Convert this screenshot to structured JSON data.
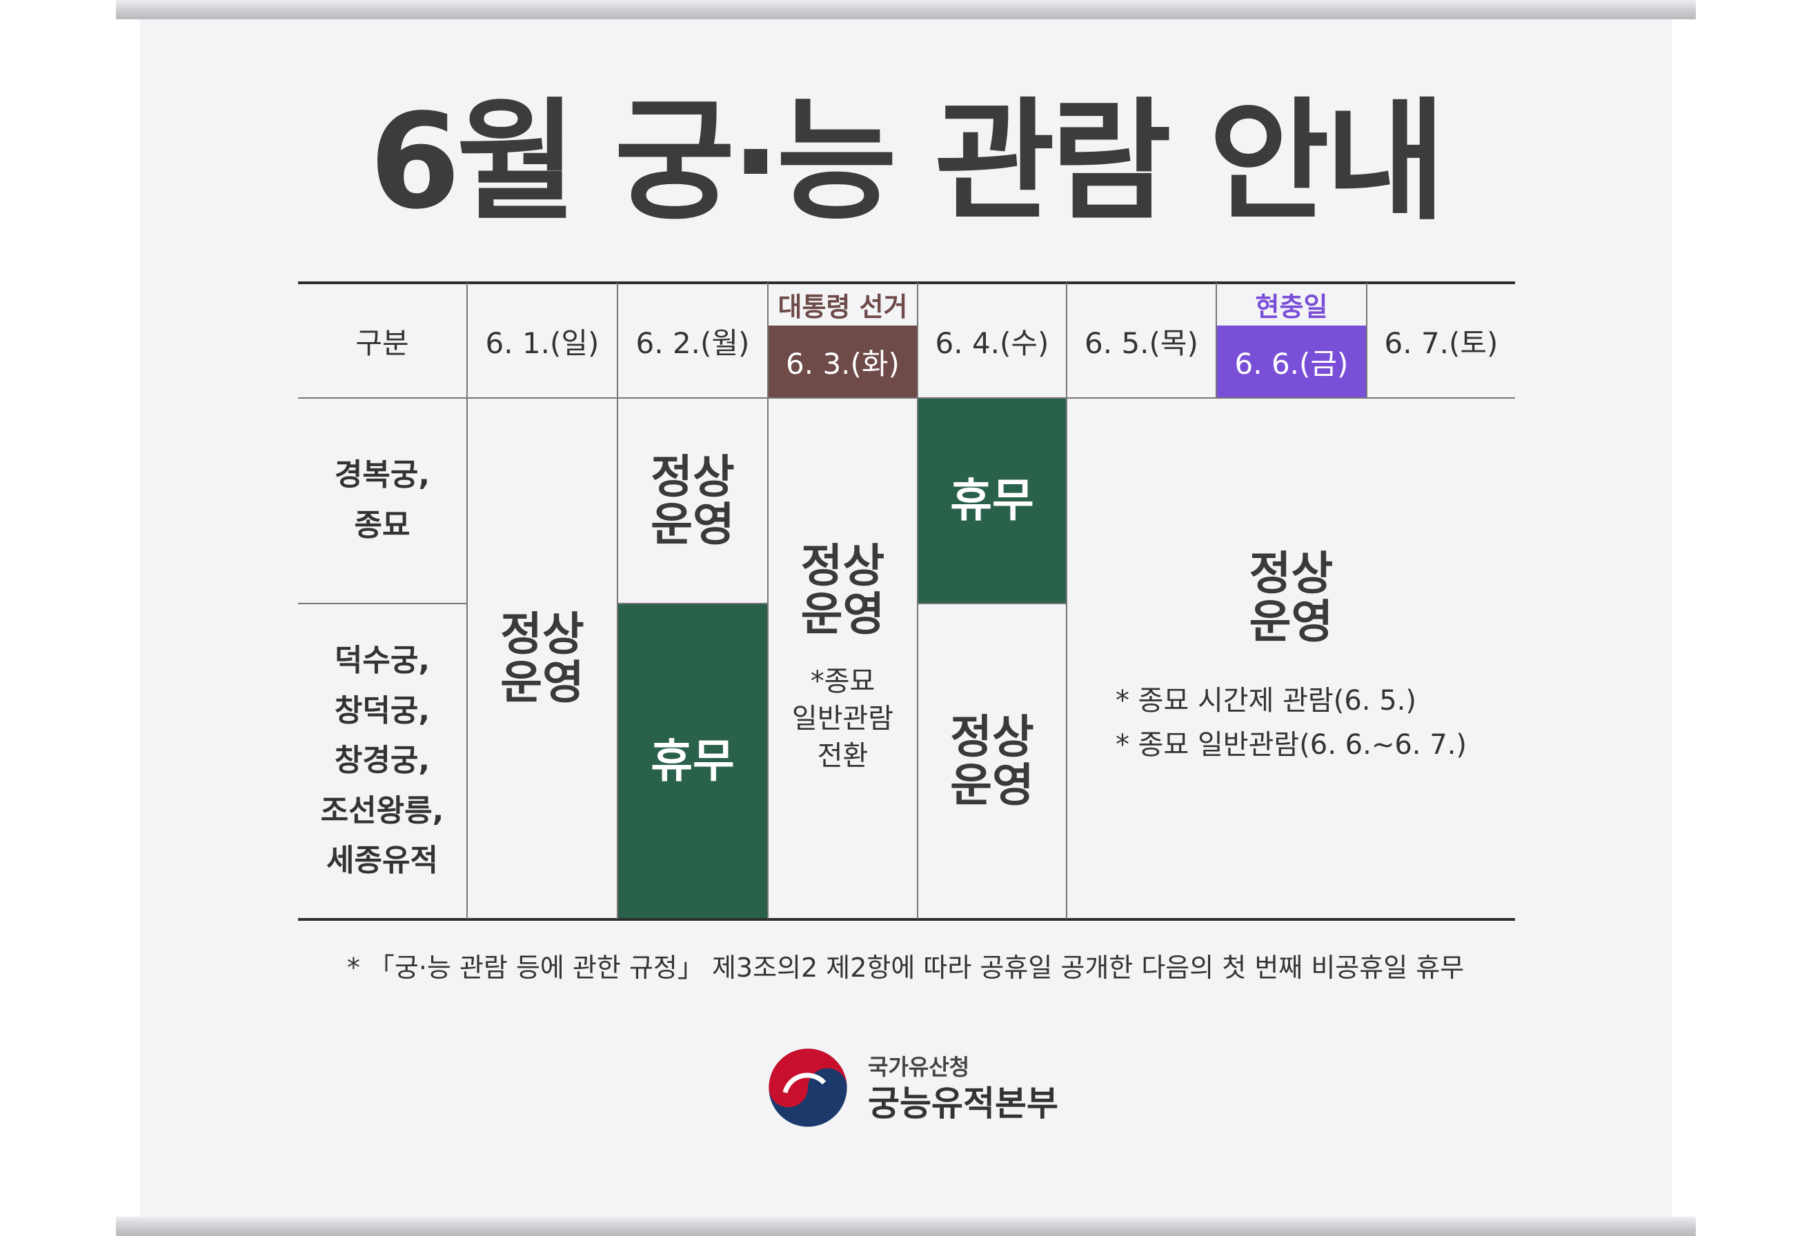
{
  "title": "6월 궁·능 관람 안내",
  "header": {
    "category": "구분",
    "days": [
      {
        "label": "6. 1.(일)"
      },
      {
        "label": "6. 2.(월)"
      },
      {
        "label": "6. 3.(화)",
        "over_label": "대통령 선거"
      },
      {
        "label": "6. 4.(수)"
      },
      {
        "label": "6. 5.(목)"
      },
      {
        "label": "6. 6.(금)",
        "over_label": "현충일"
      },
      {
        "label": "6. 7.(토)"
      }
    ]
  },
  "rows": {
    "group1": "경복궁,\n종묘",
    "group2": "덕수궁,\n창덕궁,\n창경궁,\n조선왕릉,\n세종유적"
  },
  "cells": {
    "normal": "정상\n운영",
    "closed": "휴무",
    "jongmyo_switch": "*종묘\n일반관람\n전환",
    "notes": [
      "* 종묘 시간제 관람(6. 5.)",
      "* 종묘 일반관람(6. 6.~6. 7.)"
    ]
  },
  "footnote": "* 「궁·능 관람 등에 관한 규정」 제3조의2 제2항에 따라 공휴일 공개한 다음의 첫 번째 비공휴일 휴무",
  "org": {
    "agency": "국가유산청",
    "name": "궁능유적본부"
  },
  "colors": {
    "closed_green": "#2a614a",
    "election_brown": "#6e4a48",
    "memorial_purple": "#7a4fd8",
    "election_text": "#6e4a48",
    "memorial_text": "#7a4fd8"
  },
  "icons": {
    "logo": "taegeuk-emblem-icon"
  }
}
